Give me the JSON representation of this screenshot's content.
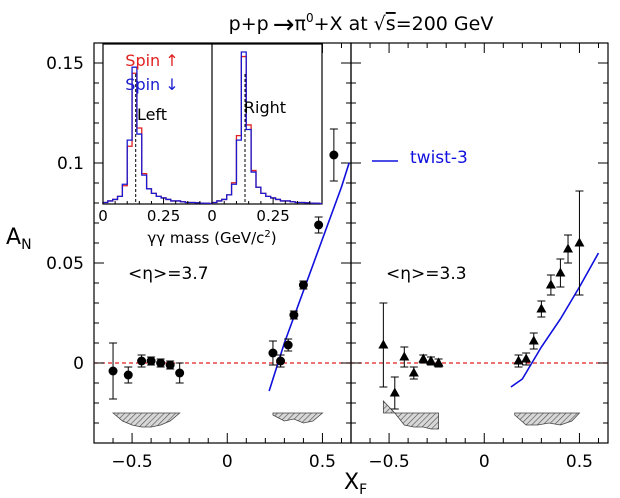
{
  "figure": {
    "title_parts": {
      "pre": "p+p",
      "arrow": "→",
      "pi": "π",
      "pi_sup": "0",
      "post": "+X at",
      "sqrt": "√",
      "s": "s",
      "energy": "=200 GeV"
    },
    "xlabel": {
      "main": "X",
      "sub": "F"
    },
    "ylabel": {
      "main": "A",
      "sub": "N"
    }
  },
  "chart_data": [
    {
      "type": "scatter",
      "panel": "left",
      "annotation": "<η>=3.7",
      "marker": "circle",
      "xlim": [
        -0.7,
        0.65
      ],
      "ylim": [
        -0.04,
        0.16
      ],
      "x_ticks": [
        -0.5,
        0,
        0.5
      ],
      "x_tick_labels": [
        "−0.5",
        "0",
        "0.5"
      ],
      "y_ticks": [
        0,
        0.05,
        0.1,
        0.15
      ],
      "y_tick_labels": [
        "0",
        "0.05",
        "0.1",
        "0.15"
      ],
      "reference_line": {
        "y": 0,
        "style": "dashed",
        "color": "#dd2222"
      },
      "points": [
        {
          "x": -0.6,
          "y": -0.004,
          "yerr": 0.014
        },
        {
          "x": -0.52,
          "y": -0.006,
          "yerr": 0.004
        },
        {
          "x": -0.45,
          "y": 0.001,
          "yerr": 0.003
        },
        {
          "x": -0.4,
          "y": 0.001,
          "yerr": 0.002
        },
        {
          "x": -0.35,
          "y": 0.0,
          "yerr": 0.002
        },
        {
          "x": -0.3,
          "y": -0.001,
          "yerr": 0.002
        },
        {
          "x": -0.25,
          "y": -0.005,
          "yerr": 0.005
        },
        {
          "x": 0.24,
          "y": 0.005,
          "yerr": 0.006
        },
        {
          "x": 0.28,
          "y": 0.001,
          "yerr": 0.003
        },
        {
          "x": 0.32,
          "y": 0.009,
          "yerr": 0.003
        },
        {
          "x": 0.35,
          "y": 0.024,
          "yerr": 0.002
        },
        {
          "x": 0.4,
          "y": 0.039,
          "yerr": 0.002
        },
        {
          "x": 0.48,
          "y": 0.069,
          "yerr": 0.004
        },
        {
          "x": 0.56,
          "y": 0.104,
          "yerr": 0.013
        }
      ],
      "theory_curve": {
        "name": "twist-3",
        "color": "#1010dd",
        "x": [
          0.22,
          0.3,
          0.4,
          0.5,
          0.6,
          0.64
        ],
        "y": [
          -0.014,
          0.01,
          0.036,
          0.062,
          0.088,
          0.1
        ]
      },
      "systematics": [
        {
          "x": [
            -0.6,
            -0.55,
            -0.5,
            -0.45,
            -0.4,
            -0.35,
            -0.3,
            -0.25
          ],
          "y": [
            -0.025,
            -0.029,
            -0.031,
            -0.032,
            -0.032,
            -0.031,
            -0.029,
            -0.025
          ]
        },
        {
          "x": [
            0.24,
            0.3,
            0.35,
            0.4,
            0.45,
            0.5
          ],
          "y": [
            -0.026,
            -0.029,
            -0.028,
            -0.03,
            -0.029,
            -0.025
          ]
        }
      ]
    },
    {
      "type": "scatter",
      "panel": "right",
      "annotation": "<η>=3.3",
      "marker": "triangle",
      "xlim": [
        -0.7,
        0.65
      ],
      "ylim": [
        -0.04,
        0.16
      ],
      "x_ticks": [
        -0.5,
        0,
        0.5
      ],
      "x_tick_labels": [
        "−0.5",
        "0",
        "0.5"
      ],
      "reference_line": {
        "y": 0,
        "style": "dashed",
        "color": "#dd2222"
      },
      "points": [
        {
          "x": -0.53,
          "y": 0.009,
          "yerr": 0.021
        },
        {
          "x": -0.47,
          "y": -0.015,
          "yerr": 0.008
        },
        {
          "x": -0.42,
          "y": 0.003,
          "yerr": 0.005
        },
        {
          "x": -0.37,
          "y": -0.005,
          "yerr": 0.003
        },
        {
          "x": -0.32,
          "y": 0.002,
          "yerr": 0.002
        },
        {
          "x": -0.28,
          "y": 0.001,
          "yerr": 0.002
        },
        {
          "x": -0.24,
          "y": 0.0,
          "yerr": 0.002
        },
        {
          "x": 0.18,
          "y": 0.001,
          "yerr": 0.003
        },
        {
          "x": 0.22,
          "y": 0.002,
          "yerr": 0.003
        },
        {
          "x": 0.26,
          "y": 0.011,
          "yerr": 0.004
        },
        {
          "x": 0.3,
          "y": 0.027,
          "yerr": 0.004
        },
        {
          "x": 0.35,
          "y": 0.039,
          "yerr": 0.005
        },
        {
          "x": 0.4,
          "y": 0.045,
          "yerr": 0.007
        },
        {
          "x": 0.44,
          "y": 0.057,
          "yerr": 0.007
        },
        {
          "x": 0.5,
          "y": 0.06,
          "yerr": 0.026
        }
      ],
      "theory_curve": {
        "name": "twist-3",
        "color": "#1010dd",
        "x": [
          0.14,
          0.2,
          0.3,
          0.4,
          0.5,
          0.6
        ],
        "y": [
          -0.012,
          -0.008,
          0.008,
          0.022,
          0.038,
          0.055
        ]
      },
      "systematics": [
        {
          "x": [
            -0.53,
            -0.47,
            -0.42,
            -0.37,
            -0.32,
            -0.28,
            -0.24
          ],
          "y": [
            -0.019,
            -0.025,
            -0.031,
            -0.032,
            -0.032,
            -0.033,
            -0.033
          ]
        },
        {
          "x": [
            0.16,
            0.22,
            0.28,
            0.34,
            0.4,
            0.46,
            0.5
          ],
          "y": [
            -0.026,
            -0.031,
            -0.031,
            -0.03,
            -0.031,
            -0.029,
            -0.025
          ]
        }
      ]
    },
    {
      "type": "histogram",
      "panel": "inset",
      "xlabel": {
        "pre": "γγ mass (GeV/c",
        "sup": "2",
        "post": ")"
      },
      "legend": [
        {
          "label": "Spin ↑",
          "color": "#e02020"
        },
        {
          "label": "Spin ↓",
          "color": "#1a1ad0"
        }
      ],
      "sides": [
        "Left",
        "Right"
      ],
      "xlim": [
        0,
        0.45
      ],
      "x_ticks": [
        0,
        0.25
      ],
      "x_tick_labels": [
        "0",
        "0.25"
      ],
      "peak_mass": 0.135,
      "bins": [
        0.01,
        0.03,
        0.05,
        0.07,
        0.09,
        0.11,
        0.13,
        0.15,
        0.17,
        0.19,
        0.21,
        0.23,
        0.25,
        0.27,
        0.29,
        0.31,
        0.33,
        0.35,
        0.37,
        0.39,
        0.41,
        0.43
      ],
      "counts_left_up": [
        0.01,
        0.02,
        0.03,
        0.05,
        0.12,
        0.38,
        0.86,
        0.5,
        0.2,
        0.1,
        0.07,
        0.05,
        0.04,
        0.03,
        0.02,
        0.02,
        0.015,
        0.01,
        0.01,
        0.008,
        0.006,
        0.005
      ],
      "counts_left_down": [
        0.01,
        0.02,
        0.03,
        0.05,
        0.13,
        0.42,
        0.9,
        0.46,
        0.19,
        0.1,
        0.07,
        0.05,
        0.04,
        0.03,
        0.02,
        0.02,
        0.015,
        0.01,
        0.01,
        0.008,
        0.006,
        0.005
      ],
      "counts_right_up": [
        0.01,
        0.02,
        0.03,
        0.06,
        0.14,
        0.45,
        0.97,
        0.52,
        0.22,
        0.11,
        0.07,
        0.05,
        0.04,
        0.03,
        0.02,
        0.02,
        0.015,
        0.01,
        0.01,
        0.008,
        0.006,
        0.005
      ],
      "counts_right_down": [
        0.01,
        0.02,
        0.03,
        0.06,
        0.13,
        0.42,
        1.0,
        0.49,
        0.21,
        0.11,
        0.07,
        0.05,
        0.04,
        0.03,
        0.02,
        0.02,
        0.015,
        0.01,
        0.01,
        0.008,
        0.006,
        0.005
      ]
    }
  ]
}
